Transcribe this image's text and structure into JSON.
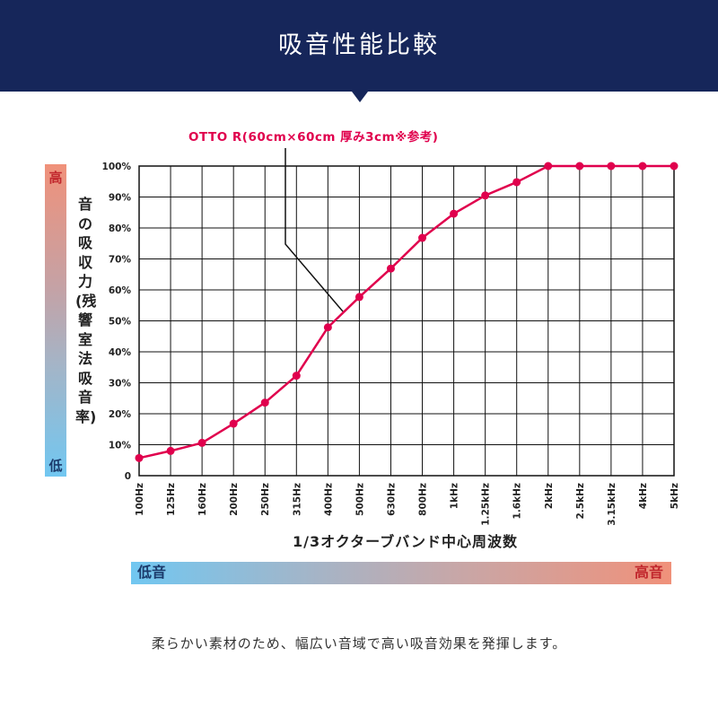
{
  "header": {
    "title": "吸音性能比較"
  },
  "side_scale": {
    "high_label": "高",
    "low_label": "低"
  },
  "freq_scale": {
    "low_label": "低音",
    "high_label": "高音"
  },
  "caption": "柔らかい素材のため、幅広い音域で高い吸音効果を発揮します。",
  "colors": {
    "header_bg": "#16265a",
    "series": "#e0004d",
    "high": "#c1272d",
    "low": "#1b3a6b"
  },
  "chart_data": {
    "type": "line",
    "title": "",
    "xlabel": "1/3オクターブバンド中心周波数",
    "ylabel": "音の吸収力(残響室法吸音率)",
    "ylim": [
      0,
      100
    ],
    "grid": true,
    "yticks": [
      "0",
      "10%",
      "20%",
      "30%",
      "40%",
      "50%",
      "60%",
      "70%",
      "80%",
      "90%",
      "100%"
    ],
    "categories": [
      "100Hz",
      "125Hz",
      "160Hz",
      "200Hz",
      "250Hz",
      "315Hz",
      "400Hz",
      "500Hz",
      "630Hz",
      "800Hz",
      "1kHz",
      "1.25kHz",
      "1.6kHz",
      "2kHz",
      "2.5kHz",
      "3.15kHz",
      "4kHz",
      "5kHz"
    ],
    "series": [
      {
        "name": "OTTO R(60cm×60cm 厚み3cm※参考)",
        "values": [
          5.7,
          8,
          10.6,
          16.8,
          23.6,
          32.3,
          47.9,
          57.7,
          66.9,
          76.8,
          84.6,
          90.5,
          94.8,
          100,
          100,
          100,
          100,
          100
        ]
      }
    ]
  }
}
